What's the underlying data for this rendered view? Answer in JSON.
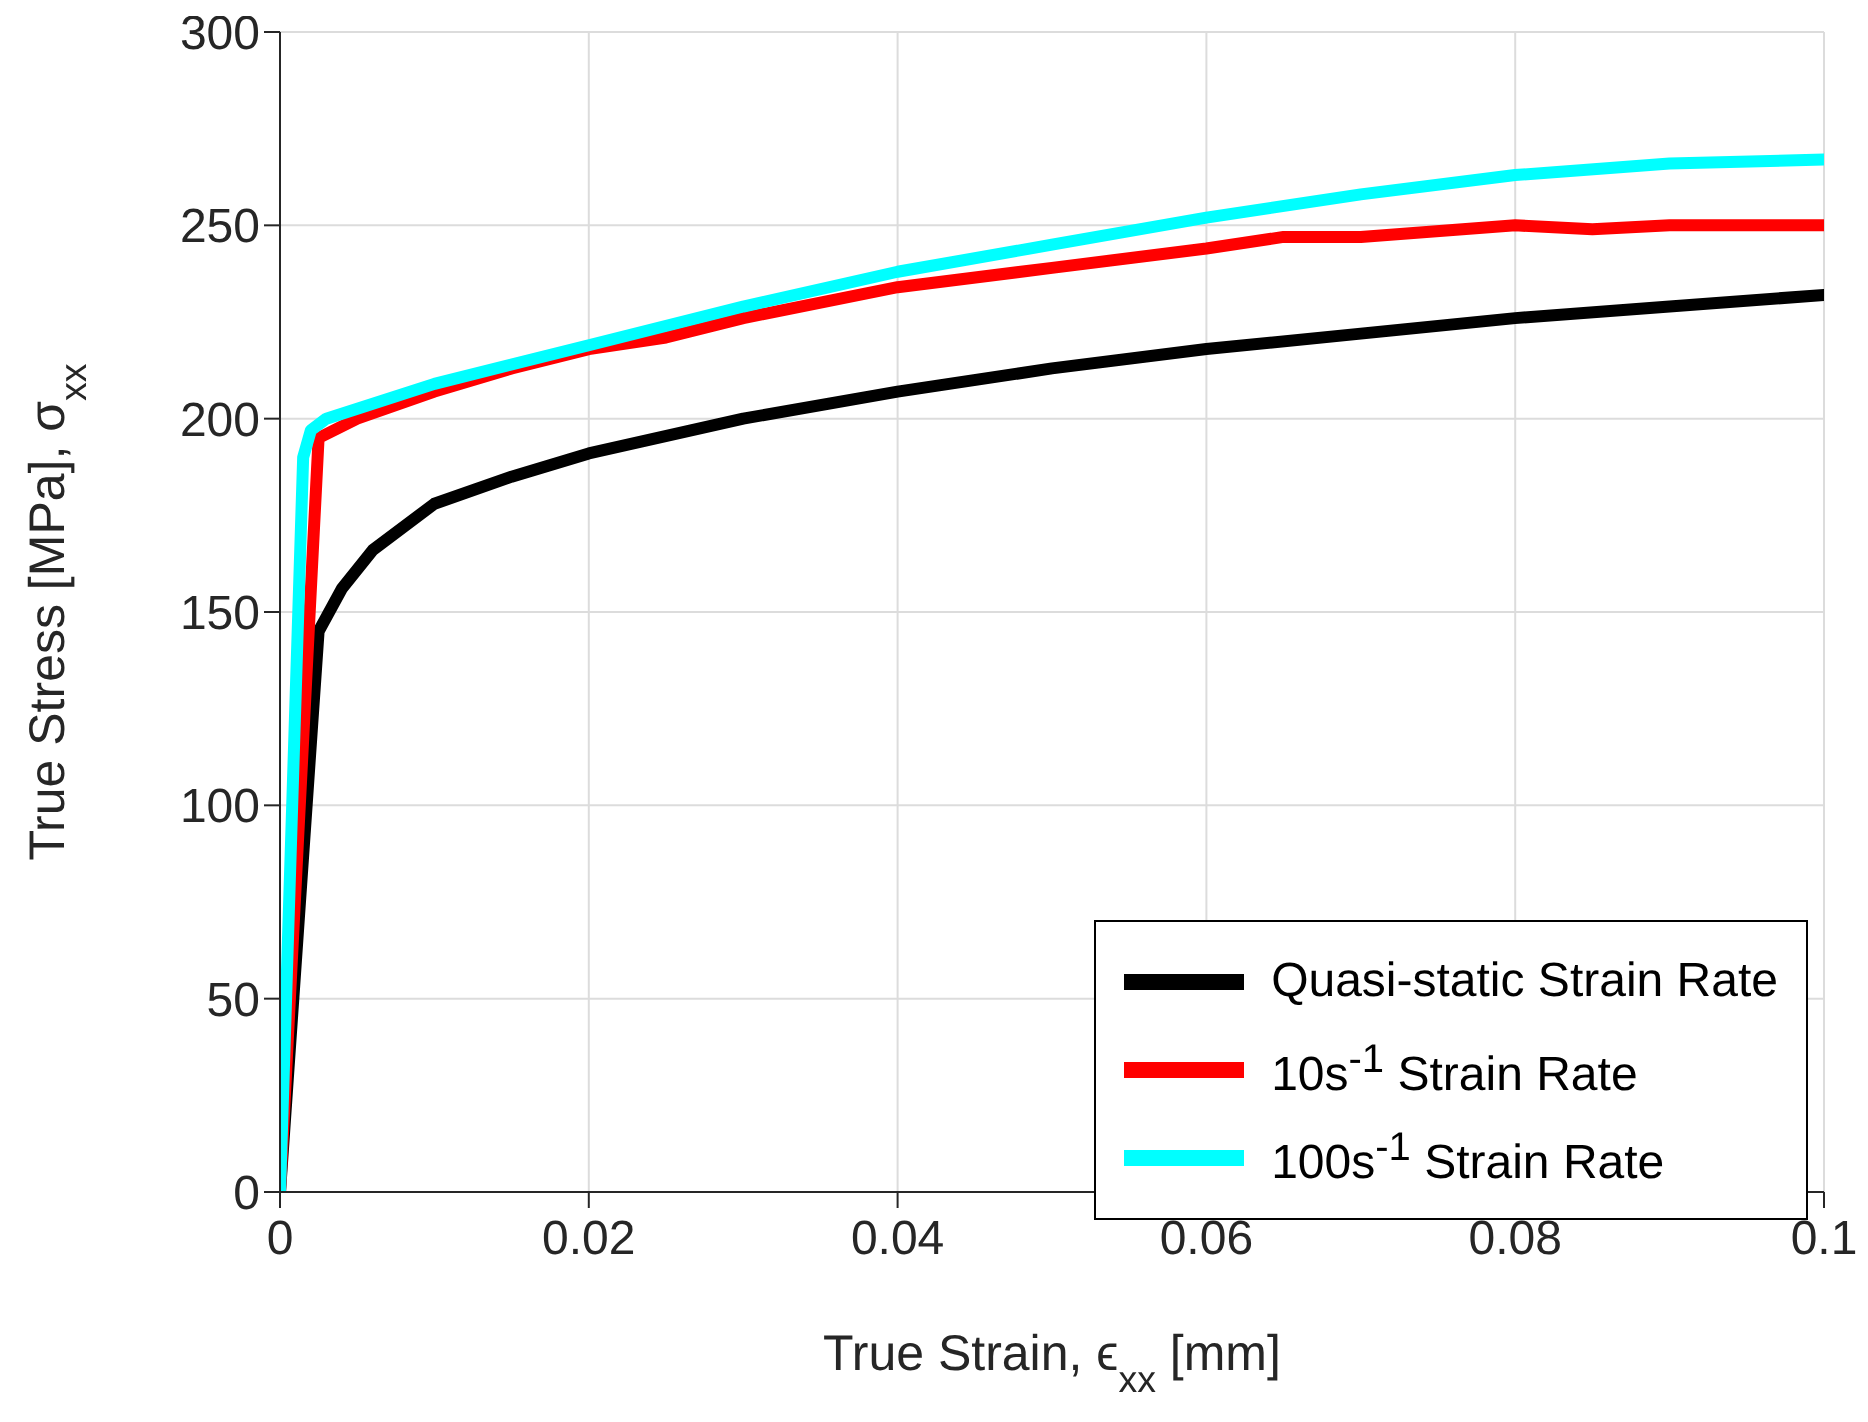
{
  "chart_data": {
    "type": "line",
    "xlabel": "True Strain, ϵ$_{xx}$ [mm]",
    "ylabel": "True Stress [MPa], σ$_{xx}$",
    "xlim": [
      0,
      0.1
    ],
    "xticks": [
      0,
      0.02,
      0.04,
      0.06,
      0.08,
      0.1
    ],
    "ylim": [
      0,
      300
    ],
    "yticks": [
      0,
      50,
      100,
      150,
      200,
      250,
      300
    ],
    "grid": true,
    "legend": "bottom right",
    "line_style": "solid",
    "marker": "none",
    "series": [
      {
        "name": "Quasi-static Strain Rate",
        "color": "#000000",
        "x": [
          0,
          0.0025,
          0.004,
          0.006,
          0.01,
          0.015,
          0.02,
          0.03,
          0.04,
          0.05,
          0.06,
          0.07,
          0.08,
          0.09,
          0.1
        ],
        "values": [
          0,
          145,
          156,
          166,
          178,
          185,
          191,
          200,
          207,
          213,
          218,
          222,
          226,
          229,
          232
        ]
      },
      {
        "name": "10s$^{-1}$ Strain Rate",
        "color": "#ff0000",
        "x": [
          0,
          0.0025,
          0.005,
          0.01,
          0.015,
          0.02,
          0.025,
          0.03,
          0.04,
          0.05,
          0.06,
          0.065,
          0.07,
          0.08,
          0.085,
          0.09,
          0.1
        ],
        "values": [
          0,
          195,
          200,
          207,
          213,
          218,
          221,
          226,
          234,
          239,
          244,
          247,
          247,
          250,
          249,
          250,
          250
        ]
      },
      {
        "name": "100s$^{-1}$ Strain Rate",
        "color": "#00ffff",
        "x": [
          0,
          0.0015,
          0.002,
          0.003,
          0.01,
          0.02,
          0.03,
          0.04,
          0.05,
          0.06,
          0.07,
          0.08,
          0.09,
          0.1
        ],
        "values": [
          0,
          190,
          197,
          200,
          209,
          219,
          229,
          238,
          245,
          252,
          258,
          263,
          266,
          267
        ]
      }
    ]
  }
}
